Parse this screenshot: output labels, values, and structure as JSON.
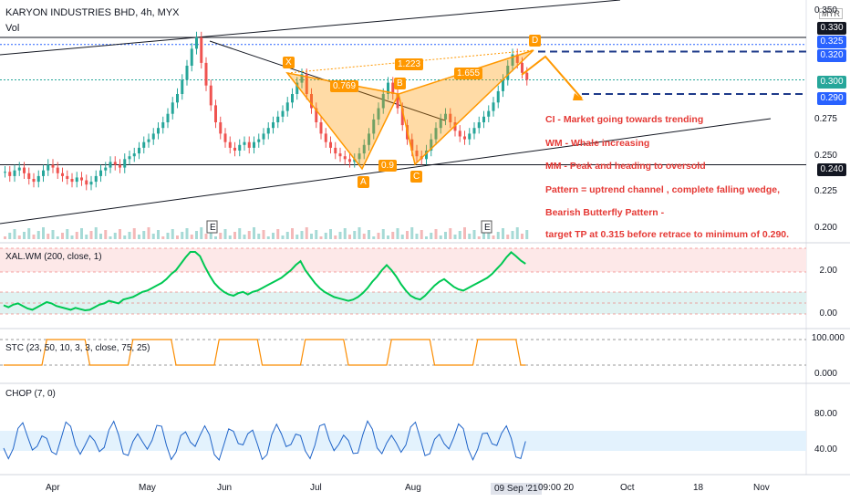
{
  "header": {
    "symbol_line": "KARYON INDUSTRIES BHD, 4h, MYX",
    "vol_label": "Vol",
    "currency": "MYR"
  },
  "price_axis": {
    "ticks": [
      "0.350",
      "0.275",
      "0.250",
      "0.225",
      "0.200"
    ],
    "tags": [
      {
        "text": "0.330",
        "color": "#131722"
      },
      {
        "text": "0.325",
        "color": "#2962ff"
      },
      {
        "text": "0.320",
        "color": "#2962ff"
      },
      {
        "text": "0.300",
        "color": "#26a69a"
      },
      {
        "text": "0.290",
        "color": "#2962ff"
      },
      {
        "text": "0.240",
        "color": "#131722"
      }
    ]
  },
  "pattern_points": [
    {
      "label": "X"
    },
    {
      "label": "A"
    },
    {
      "label": "B"
    },
    {
      "label": "C"
    },
    {
      "label": "D"
    },
    {
      "label": "0.769"
    },
    {
      "label": "1.223"
    },
    {
      "label": "1.655"
    },
    {
      "label": "0.9"
    }
  ],
  "earnings_markers": [
    "E",
    "E"
  ],
  "annotations": [
    "CI - Market going towards trending",
    "WM - Whale increasing",
    "MM - Peak and heading to oversold",
    "Pattern = uptrend channel , complete falling wedge,",
    "Bearish Butterfly Pattern -",
    "target TP at 0.315 before retrace to minimum of 0.290."
  ],
  "panes": {
    "wm": {
      "title": "XAL.WM (200, close, 1)",
      "ticks": [
        "2.00",
        "0.00"
      ]
    },
    "stc": {
      "title": "STC (23, 50, 10, 3, 3, close, 75, 25)",
      "ticks": [
        "100.000",
        "0.000"
      ]
    },
    "chop": {
      "title": "CHOP (7, 0)",
      "ticks": [
        "80.00",
        "40.00"
      ]
    }
  },
  "time_axis": {
    "labels": [
      "Apr",
      "May",
      "Jun",
      "Jul",
      "Aug",
      "09 Sep '21",
      "09:00",
      "20",
      "Oct",
      "18",
      "Nov"
    ]
  },
  "colors": {
    "up": "#26a69a",
    "down": "#ef5350",
    "pattern": "#ff9800",
    "annotation": "#e53935",
    "level_line": "#1e3a8a"
  },
  "chart_data": {
    "type": "candlestick",
    "title": "KARYON INDUSTRIES BHD, 4h, MYX",
    "ylim": [
      0.19,
      0.35
    ],
    "series": [
      {
        "name": "price",
        "values": [
          0.235,
          0.232,
          0.236,
          0.238,
          0.234,
          0.23,
          0.228,
          0.232,
          0.236,
          0.24,
          0.238,
          0.234,
          0.232,
          0.23,
          0.228,
          0.231,
          0.229,
          0.226,
          0.228,
          0.232,
          0.236,
          0.238,
          0.242,
          0.24,
          0.238,
          0.244,
          0.246,
          0.248,
          0.252,
          0.256,
          0.258,
          0.262,
          0.266,
          0.27,
          0.276,
          0.284,
          0.29,
          0.3,
          0.31,
          0.322,
          0.33,
          0.312,
          0.296,
          0.282,
          0.27,
          0.262,
          0.256,
          0.252,
          0.25,
          0.254,
          0.256,
          0.252,
          0.256,
          0.258,
          0.262,
          0.266,
          0.27,
          0.274,
          0.278,
          0.284,
          0.29,
          0.298,
          0.304,
          0.29,
          0.28,
          0.27,
          0.262,
          0.256,
          0.252,
          0.248,
          0.246,
          0.244,
          0.242,
          0.244,
          0.248,
          0.254,
          0.262,
          0.272,
          0.28,
          0.29,
          0.298,
          0.29,
          0.28,
          0.268,
          0.258,
          0.25,
          0.246,
          0.244,
          0.25,
          0.258,
          0.266,
          0.272,
          0.276,
          0.27,
          0.264,
          0.26,
          0.258,
          0.262,
          0.266,
          0.27,
          0.274,
          0.278,
          0.284,
          0.292,
          0.3,
          0.31,
          0.318,
          0.312,
          0.305,
          0.3
        ]
      }
    ],
    "levels": [
      0.33,
      0.325,
      0.32,
      0.3,
      0.29,
      0.24
    ]
  }
}
